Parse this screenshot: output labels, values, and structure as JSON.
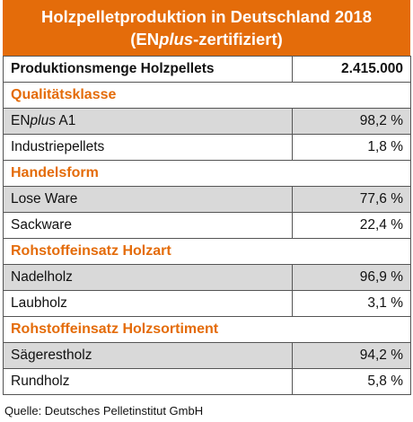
{
  "header": {
    "title_line1": "Holzpelletproduktion in Deutschland 2018",
    "title_line2_pre": "(EN",
    "title_line2_italic": "plus",
    "title_line2_post": "-zertifiziert)"
  },
  "total": {
    "label": "Produktionsmenge Holzpellets",
    "value": "2.415.000"
  },
  "sections": [
    {
      "title": "Qualitätsklasse",
      "rows": [
        {
          "label_pre": "EN",
          "label_italic": "plus",
          "label_post": " A1",
          "value": "98,2 %"
        },
        {
          "label": "Industriepellets",
          "value": "1,8 %"
        }
      ]
    },
    {
      "title": "Handelsform",
      "rows": [
        {
          "label": "Lose Ware",
          "value": "77,6 %"
        },
        {
          "label": "Sackware",
          "value": "22,4 %"
        }
      ]
    },
    {
      "title": "Rohstoffeinsatz Holzart",
      "rows": [
        {
          "label": "Nadelholz",
          "value": "96,9 %"
        },
        {
          "label": "Laubholz",
          "value": "3,1 %"
        }
      ]
    },
    {
      "title": "Rohstoffeinsatz Holzsortiment",
      "rows": [
        {
          "label": "Sägerestholz",
          "value": "94,2 %"
        },
        {
          "label": "Rundholz",
          "value": "5,8 %"
        }
      ]
    }
  ],
  "source": "Quelle: Deutsches Pelletinstitut GmbH",
  "colors": {
    "accent": "#e46c0a",
    "shade": "#d9d9d9",
    "border": "#555555"
  }
}
